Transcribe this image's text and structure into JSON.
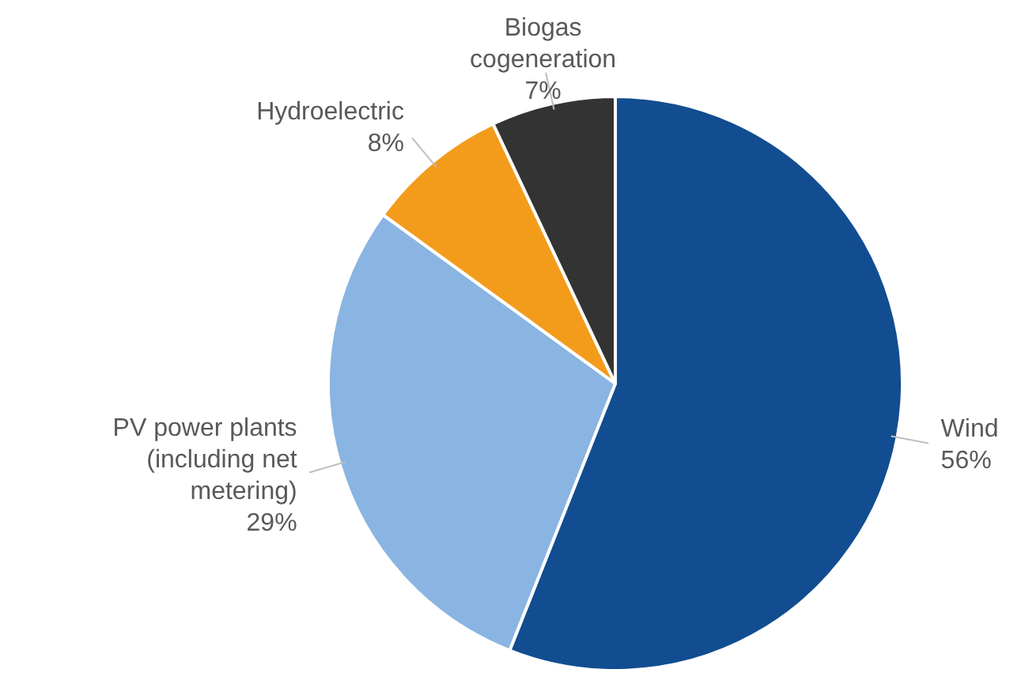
{
  "chart_data": {
    "type": "pie",
    "categories": [
      "Wind",
      "PV power plants (including net metering)",
      "Hydroelectric",
      "Biogas cogeneration"
    ],
    "values": [
      56,
      29,
      8,
      7
    ],
    "colors": [
      "#124d91",
      "#8ab4e2",
      "#f39c1c",
      "#333333"
    ],
    "value_labels": [
      "56%",
      "29%",
      "8%",
      "7%"
    ],
    "legend": false
  }
}
